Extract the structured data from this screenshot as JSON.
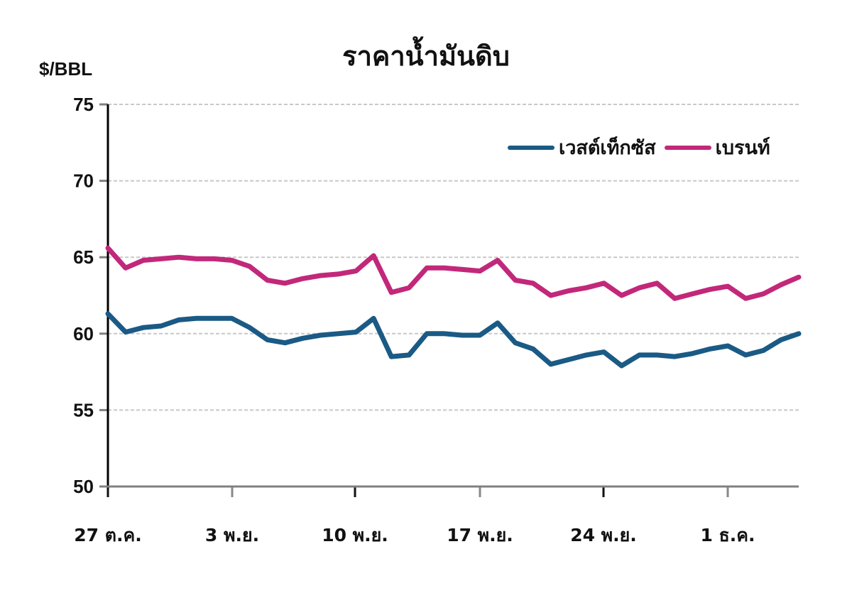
{
  "chart_data": {
    "type": "line",
    "title": "ราคาน้ำมันดิบ",
    "ylabel": "$/BBL",
    "xlabel": "",
    "ylim": [
      50,
      75
    ],
    "yticks": [
      50,
      55,
      60,
      65,
      70,
      75
    ],
    "grid": true,
    "legend_position": "top-right",
    "xtick_labels": [
      "27 ต.ค.",
      "3 พ.ย.",
      "10 พ.ย.",
      "17 พ.ย.",
      "24 พ.ย.",
      "1 ธ.ค."
    ],
    "x_index": [
      0,
      1,
      2,
      3,
      4,
      5,
      6,
      7,
      8,
      9,
      10,
      11,
      12,
      13,
      14,
      15,
      16,
      17,
      18,
      19,
      20,
      21,
      22,
      23,
      24,
      25,
      26,
      27,
      28,
      29,
      30,
      31,
      32,
      33,
      34,
      35,
      36,
      37,
      38,
      39
    ],
    "series": [
      {
        "name": "เวสต์เท็กซัส",
        "color": "#1a5a85",
        "values": [
          61.3,
          60.1,
          60.4,
          60.5,
          60.9,
          61.0,
          61.0,
          61.0,
          60.4,
          59.6,
          59.4,
          59.7,
          59.9,
          60.0,
          60.1,
          61.0,
          58.5,
          58.6,
          60.0,
          60.0,
          59.9,
          59.9,
          60.7,
          59.4,
          59.0,
          58.0,
          58.3,
          58.6,
          58.8,
          57.9,
          58.6,
          58.6,
          58.5,
          58.7,
          59.0,
          59.2,
          58.6,
          58.9,
          59.6,
          60.0
        ]
      },
      {
        "name": "เบรนท์",
        "color": "#c2287a",
        "values": [
          65.6,
          64.3,
          64.8,
          64.9,
          65.0,
          64.9,
          64.9,
          64.8,
          64.4,
          63.5,
          63.3,
          63.6,
          63.8,
          63.9,
          64.1,
          65.1,
          62.7,
          63.0,
          64.3,
          64.3,
          64.2,
          64.1,
          64.8,
          63.5,
          63.3,
          62.5,
          62.8,
          63.0,
          63.3,
          62.5,
          63.0,
          63.3,
          62.3,
          62.6,
          62.9,
          63.1,
          62.3,
          62.6,
          63.2,
          63.7
        ]
      }
    ]
  },
  "header": {
    "title": "ราคาน้ำมันดิบ",
    "unit": "$/BBL"
  },
  "legend": [
    {
      "label": "เวสต์เท็กซัส",
      "color": "#1a5a85"
    },
    {
      "label": "เบรนท์",
      "color": "#c2287a"
    }
  ],
  "axes": {
    "y_labels": [
      "75",
      "70",
      "65",
      "60",
      "55",
      "50"
    ],
    "x_labels": [
      "27 ต.ค.",
      "3 พ.ย.",
      "10 พ.ย.",
      "17 พ.ย.",
      "24 พ.ย.",
      "1 ธ.ค."
    ]
  }
}
